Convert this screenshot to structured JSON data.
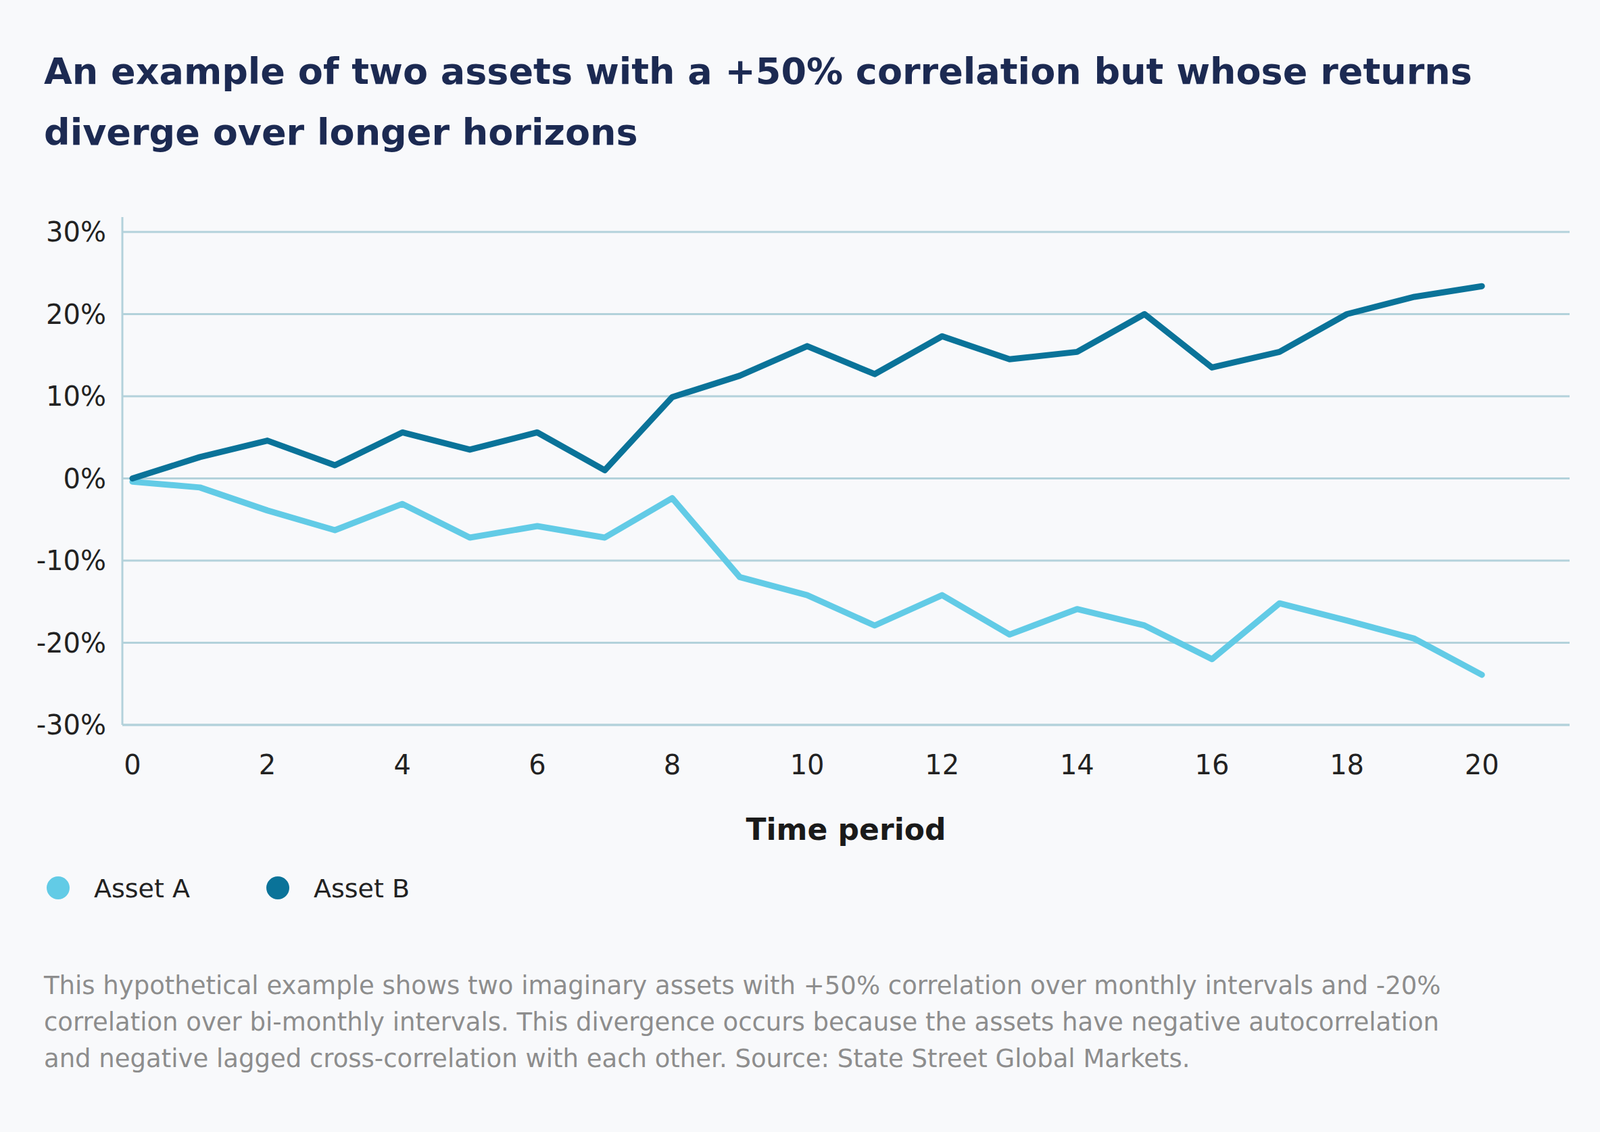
{
  "chart_data": {
    "type": "line",
    "title": "An example of two assets with a +50% correlation but whose returns diverge over longer horizons",
    "title_lines": [
      "An example of two assets with a +50% correlation but whose returns",
      "diverge over longer horizons"
    ],
    "x_label": "Time period",
    "x": [
      0,
      1,
      2,
      3,
      4,
      5,
      6,
      7,
      8,
      9,
      10,
      11,
      12,
      13,
      14,
      15,
      16,
      17,
      18,
      19,
      20
    ],
    "series": [
      {
        "name": "Asset A",
        "color": "#62cbe6",
        "values": [
          -0.4,
          -1.1,
          -3.9,
          -6.3,
          -3.1,
          -7.2,
          -5.8,
          -7.2,
          -2.4,
          -12.0,
          -14.2,
          -17.9,
          -14.2,
          -19.0,
          -15.9,
          -17.9,
          -22.0,
          -15.2,
          -17.3,
          -19.5,
          -23.9
        ]
      },
      {
        "name": "Asset B",
        "color": "#0a7399",
        "values": [
          0,
          2.6,
          4.6,
          1.6,
          5.6,
          3.5,
          5.6,
          1.0,
          9.9,
          12.5,
          16.1,
          12.7,
          17.3,
          14.5,
          15.4,
          20.0,
          13.5,
          15.4,
          20.0,
          22.1,
          23.4
        ]
      }
    ],
    "xlim": [
      -0.15,
      21.3
    ],
    "xticks": [
      0,
      2,
      4,
      6,
      8,
      10,
      12,
      14,
      16,
      18,
      20
    ],
    "ylim": [
      -30,
      30
    ],
    "yticks": [
      {
        "value": 30,
        "label": "30%"
      },
      {
        "value": 20,
        "label": "20%"
      },
      {
        "value": 10,
        "label": "10%"
      },
      {
        "value": 0,
        "label": "0%"
      },
      {
        "value": -10,
        "label": "-10%"
      },
      {
        "value": -20,
        "label": "-20%"
      },
      {
        "value": -30,
        "label": "-30%"
      }
    ],
    "grid": true,
    "legend": "bottom-left",
    "caption": [
      "This hypothetical example shows two imaginary assets with +50% correlation over monthly intervals and -20%",
      "correlation over bi-monthly intervals. This divergence occurs because the assets have negative autocorrelation",
      "and negative lagged cross-correlation with each other. Source: State Street Global Markets."
    ]
  }
}
